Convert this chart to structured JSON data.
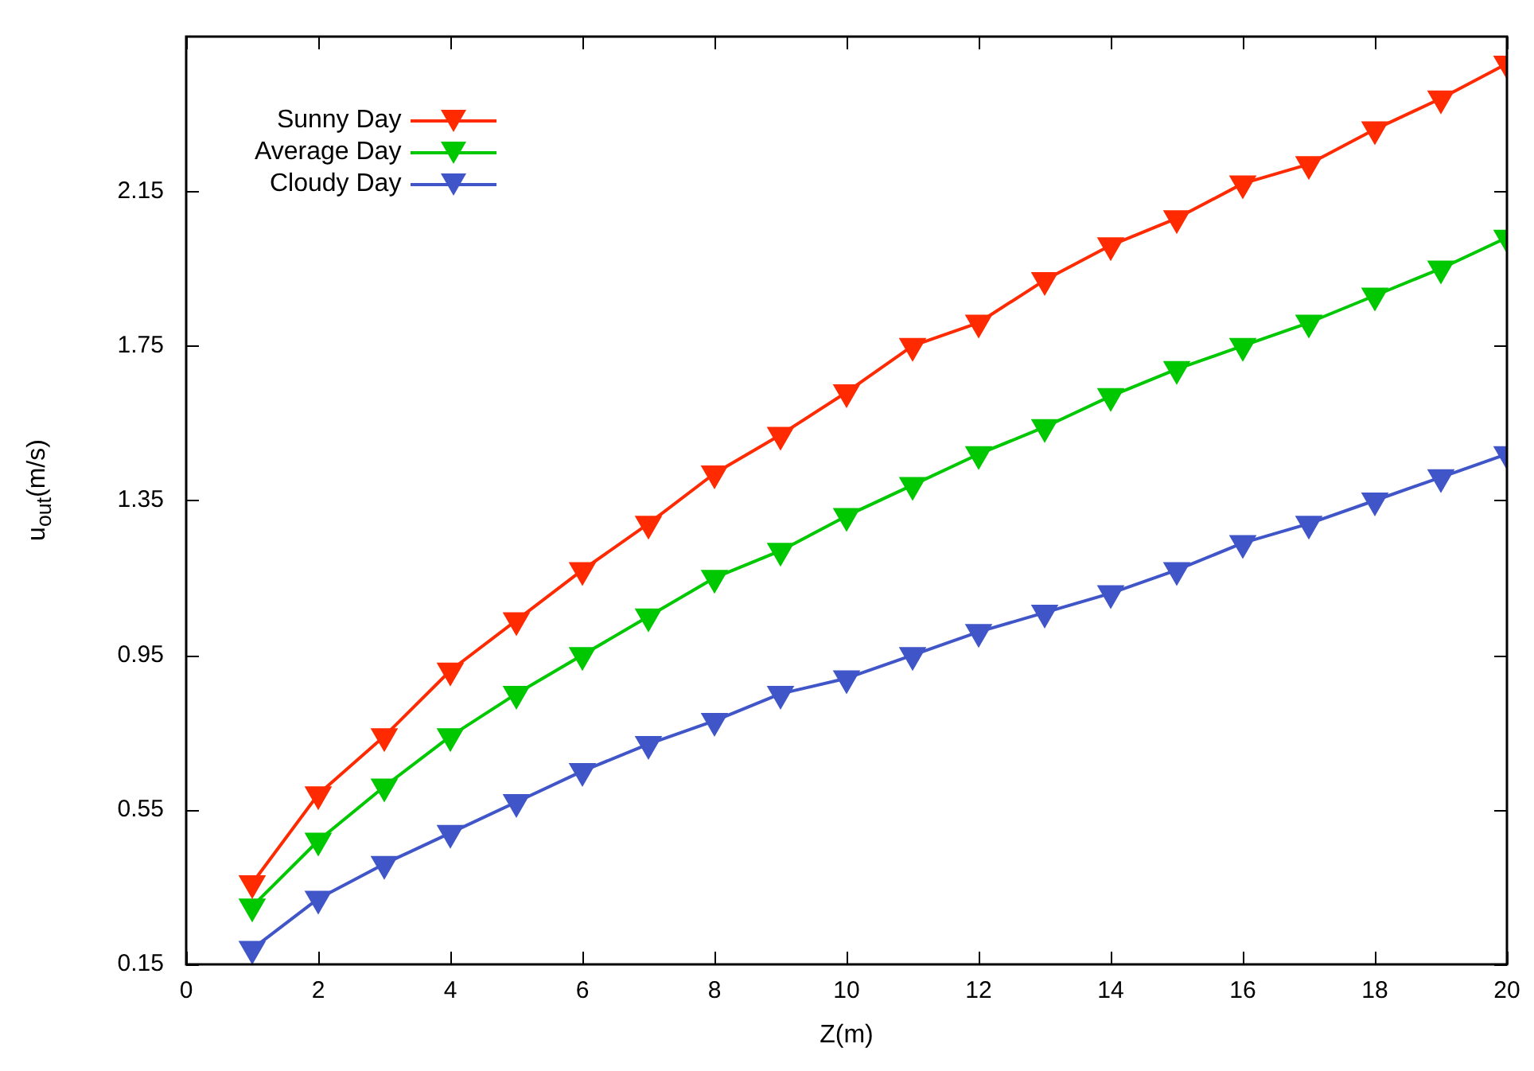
{
  "chart_data": {
    "type": "line",
    "xlabel": "Z(m)",
    "ylabel": "u$_{out}$(m/s)",
    "x": [
      1,
      2,
      3,
      4,
      5,
      6,
      7,
      8,
      9,
      10,
      11,
      12,
      13,
      14,
      15,
      16,
      17,
      18,
      19,
      20
    ],
    "series": [
      {
        "name": "Sunny Day",
        "color": "#ff2a00",
        "values": [
          0.36,
          0.59,
          0.74,
          0.91,
          1.04,
          1.17,
          1.29,
          1.42,
          1.52,
          1.63,
          1.75,
          1.81,
          1.92,
          2.01,
          2.08,
          2.17,
          2.22,
          2.31,
          2.39,
          2.48
        ]
      },
      {
        "name": "Average Day",
        "color": "#00c800",
        "values": [
          0.3,
          0.47,
          0.61,
          0.74,
          0.85,
          0.95,
          1.05,
          1.15,
          1.22,
          1.31,
          1.39,
          1.47,
          1.54,
          1.62,
          1.69,
          1.75,
          1.81,
          1.88,
          1.95,
          2.03
        ]
      },
      {
        "name": "Cloudy Day",
        "color": "#4055c8",
        "values": [
          0.19,
          0.32,
          0.41,
          0.49,
          0.57,
          0.65,
          0.72,
          0.78,
          0.85,
          0.89,
          0.95,
          1.01,
          1.06,
          1.11,
          1.17,
          1.24,
          1.29,
          1.35,
          1.41,
          1.47
        ]
      }
    ],
    "xlim": [
      0,
      20
    ],
    "xticks": [
      0,
      2,
      4,
      6,
      8,
      10,
      12,
      14,
      16,
      18,
      20
    ],
    "ylim": [
      0.15,
      2.55
    ],
    "yticks": [
      0.15,
      0.55,
      0.95,
      1.35,
      1.75,
      2.15
    ],
    "grid": false,
    "legend": "top left",
    "marker": "triangle",
    "line_style": "solid"
  }
}
